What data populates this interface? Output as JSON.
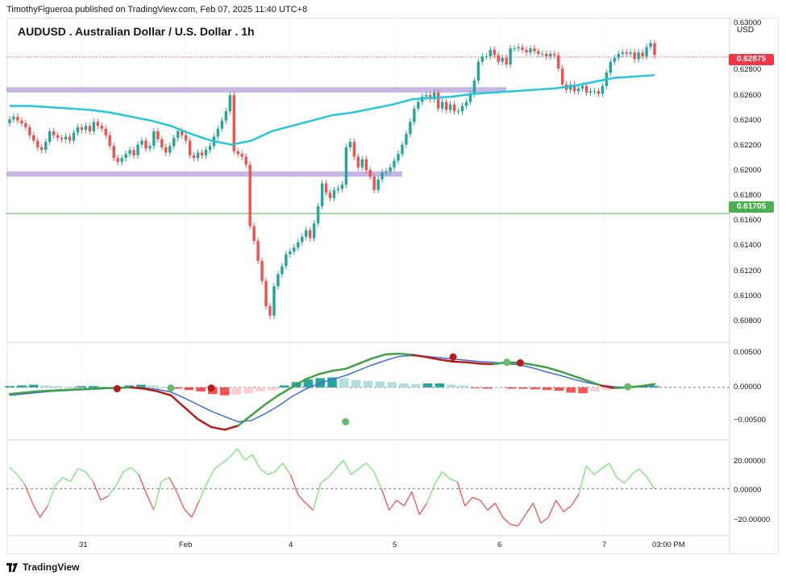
{
  "header": {
    "published": "TimothyFigueroa published on TradingView.com, Feb 07, 2025 11:40 UTC+8",
    "symbol_title": "AUDUSD . Australian Dollar / U.S. Dollar . 1h",
    "currency": "USD"
  },
  "price_axis": {
    "ticks": [
      "0.63000",
      "0.62800",
      "0.62600",
      "0.62400",
      "0.62200",
      "0.62000",
      "0.61800",
      "0.61600",
      "0.61400",
      "0.61200",
      "0.61000",
      "0.60800"
    ],
    "last_price_label": "0.62875",
    "line_label": "0.61705"
  },
  "macd_axis": {
    "ticks": [
      "0.00500",
      "0.00000",
      "−0.00500"
    ]
  },
  "osc_axis": {
    "ticks": [
      "20.00000",
      "0.00000",
      "−20.00000"
    ]
  },
  "time_axis": {
    "ticks": [
      "31",
      "Feb",
      "4",
      "5",
      "6",
      "7",
      "03:00 PM"
    ]
  },
  "footer": {
    "brand": "TradingView"
  },
  "colors": {
    "up": "#26a69a",
    "down": "#ef5350",
    "ema": "#26c6da",
    "zone": "#b39ddb",
    "support_line": "#4caf50",
    "last_price": "#f23645",
    "macd_up_line": "#43a047",
    "macd_down_line": "#b71c1c",
    "signal_line": "#3f6fd8"
  },
  "chart_data": {
    "type": "candlestick",
    "title": "AUDUSD . Australian Dollar / U.S. Dollar . 1h",
    "interval": "1h",
    "y_range": [
      0.6074,
      0.6317
    ],
    "last_price": 0.62875,
    "horizontal_line": 0.61705,
    "zones": [
      {
        "from_x": 0,
        "to_x": 124,
        "low": 0.6261,
        "high": 0.6265
      },
      {
        "from_x": 0,
        "to_x": 98,
        "low": 0.6198,
        "high": 0.6202
      }
    ],
    "closes": [
      0.6241,
      0.6243,
      0.624,
      0.6238,
      0.6235,
      0.6229,
      0.6225,
      0.622,
      0.6218,
      0.6224,
      0.6232,
      0.6229,
      0.6227,
      0.6226,
      0.6228,
      0.6225,
      0.6231,
      0.6235,
      0.6233,
      0.6236,
      0.6232,
      0.6239,
      0.6236,
      0.6234,
      0.6229,
      0.6221,
      0.6212,
      0.6209,
      0.6212,
      0.6215,
      0.6218,
      0.6214,
      0.6222,
      0.6225,
      0.6219,
      0.6221,
      0.6232,
      0.6226,
      0.622,
      0.6216,
      0.6221,
      0.6227,
      0.6232,
      0.6229,
      0.6225,
      0.6214,
      0.6212,
      0.6216,
      0.6214,
      0.6218,
      0.6221,
      0.6228,
      0.6234,
      0.624,
      0.6247,
      0.6259,
      0.6217,
      0.6215,
      0.6213,
      0.6207,
      0.6161,
      0.615,
      0.6135,
      0.612,
      0.6101,
      0.6094,
      0.6116,
      0.6125,
      0.6131,
      0.614,
      0.6142,
      0.6145,
      0.6149,
      0.6153,
      0.6158,
      0.6152,
      0.6163,
      0.6176,
      0.6193,
      0.6186,
      0.6182,
      0.6188,
      0.6189,
      0.6192,
      0.622,
      0.6224,
      0.6213,
      0.6205,
      0.6211,
      0.6203,
      0.6198,
      0.6188,
      0.6196,
      0.6201,
      0.6202,
      0.6205,
      0.621,
      0.6215,
      0.6222,
      0.623,
      0.6239,
      0.6249,
      0.6254,
      0.6258,
      0.6259,
      0.6256,
      0.6261,
      0.6249,
      0.6254,
      0.6248,
      0.6252,
      0.6247,
      0.6247,
      0.6251,
      0.6254,
      0.626,
      0.627,
      0.6284,
      0.6288,
      0.6288,
      0.6293,
      0.6289,
      0.6284,
      0.6287,
      0.6282,
      0.6294,
      0.6294,
      0.6295,
      0.6293,
      0.6291,
      0.6294,
      0.6292,
      0.629,
      0.629,
      0.6288,
      0.629,
      0.6289,
      0.6279,
      0.6267,
      0.6263,
      0.6267,
      0.6262,
      0.6264,
      0.6266,
      0.6261,
      0.6262,
      0.6262,
      0.626,
      0.6266,
      0.6276,
      0.6284,
      0.6287,
      0.629,
      0.6291,
      0.629,
      0.6291,
      0.6286,
      0.6291,
      0.6288,
      0.6295,
      0.6298,
      0.6289
    ],
    "ema": [
      0.6251,
      0.6251,
      0.625,
      0.6249,
      0.6248,
      0.6246,
      0.6243,
      0.624,
      0.6236,
      0.623,
      0.6225,
      0.6222,
      0.6225,
      0.6232,
      0.6236,
      0.624,
      0.6244,
      0.6246,
      0.6249,
      0.6252,
      0.6256,
      0.6257,
      0.6258,
      0.626,
      0.6261,
      0.6262,
      0.6263,
      0.6264,
      0.6266,
      0.6269,
      0.6272,
      0.6273,
      0.6274
    ],
    "macd": [
      -0.001,
      -0.0008,
      -0.0006,
      -0.0005,
      -0.0004,
      -0.0003,
      -0.0002,
      -0.0001,
      -0.0001,
      0.0,
      -0.0002,
      -0.0006,
      -0.0012,
      -0.003,
      -0.0048,
      -0.006,
      -0.0064,
      -0.0058,
      -0.0042,
      -0.0026,
      -0.0012,
      0.0,
      0.0012,
      0.002,
      0.0025,
      0.0028,
      0.0036,
      0.0044,
      0.005,
      0.0051,
      0.0049,
      0.0046,
      0.0042,
      0.0039,
      0.0038,
      0.0036,
      0.0035,
      0.0038,
      0.0037,
      0.0034,
      0.003,
      0.0024,
      0.0017,
      0.001,
      0.0003,
      -0.0001,
      0.0,
      0.0002,
      0.0005
    ],
    "signal": [
      -0.0012,
      -0.001,
      -0.0008,
      -0.0006,
      -0.0005,
      -0.0004,
      -0.0003,
      -0.0002,
      -0.0001,
      0.0,
      -0.0001,
      -0.0003,
      -0.0007,
      -0.0016,
      -0.0026,
      -0.0036,
      -0.0044,
      -0.0052,
      -0.005,
      -0.004,
      -0.0028,
      -0.0014,
      -0.0003,
      0.0006,
      0.0012,
      0.0018,
      0.0026,
      0.0034,
      0.0041,
      0.0047,
      0.0048,
      0.0047,
      0.0045,
      0.0043,
      0.0041,
      0.0039,
      0.0038,
      0.0036,
      0.0034,
      0.0029,
      0.0023,
      0.0018,
      0.0012,
      0.0007,
      0.0003,
      0.0001,
      0.0,
      0.0001,
      0.0002
    ],
    "histogram": [
      0.0002,
      0.0003,
      0.0004,
      0.0003,
      0.0002,
      0.0001,
      0.0002,
      0.0002,
      0.0001,
      0.0001,
      0.0003,
      0.0004,
      0.0003,
      0.0001,
      -0.0002,
      -0.0004,
      -0.0006,
      -0.001,
      -0.0012,
      -0.0011,
      -0.0009,
      -0.0006,
      -0.0004,
      0.0003,
      0.0008,
      0.0012,
      0.0014,
      0.0015,
      0.0014,
      0.0011,
      0.001,
      0.0009,
      0.0008,
      0.0006,
      0.0005,
      0.0006,
      0.0006,
      0.0004,
      0.0003,
      -0.0001,
      -0.0002,
      -0.0001,
      -0.0002,
      -0.0002,
      -0.0003,
      -0.0004,
      -0.0005,
      -0.0008,
      -0.0009,
      -0.0006,
      -0.0004,
      -0.0002,
      -0.0001,
      0.0001,
      0.0002
    ],
    "cross_points": [
      {
        "index": 8,
        "value": -0.0002,
        "kind": "bear"
      },
      {
        "index": 12,
        "value": -0.0001,
        "kind": "bull"
      },
      {
        "index": 15,
        "value": -0.0001,
        "kind": "bear"
      },
      {
        "index": 25,
        "value": -0.0052,
        "kind": "bull"
      },
      {
        "index": 33,
        "value": 0.0046,
        "kind": "bear"
      },
      {
        "index": 37,
        "value": 0.0038,
        "kind": "bull"
      },
      {
        "index": 38,
        "value": 0.0037,
        "kind": "bear"
      },
      {
        "index": 46,
        "value": 0.0001,
        "kind": "bull"
      }
    ],
    "oscillator": [
      15,
      10,
      3,
      -10,
      -20,
      -12,
      2,
      8,
      5,
      14,
      12,
      5,
      -8,
      -5,
      2,
      12,
      15,
      10,
      -3,
      -15,
      5,
      8,
      -2,
      -14,
      -20,
      -8,
      4,
      14,
      18,
      22,
      28,
      20,
      24,
      14,
      10,
      12,
      18,
      10,
      -4,
      -10,
      -15,
      4,
      8,
      14,
      20,
      10,
      14,
      18,
      12,
      0,
      -15,
      -8,
      -12,
      -2,
      -18,
      -10,
      3,
      12,
      7,
      5,
      -12,
      -6,
      -8,
      -15,
      -10,
      -20,
      -25,
      -26,
      -18,
      -10,
      -24,
      -20,
      -8,
      -16,
      -12,
      -4,
      16,
      10,
      14,
      18,
      8,
      4,
      10,
      14,
      8,
      0
    ],
    "time_ticks": [
      "31",
      "Feb",
      "4",
      "5",
      "6",
      "7",
      "03:00 PM"
    ]
  }
}
